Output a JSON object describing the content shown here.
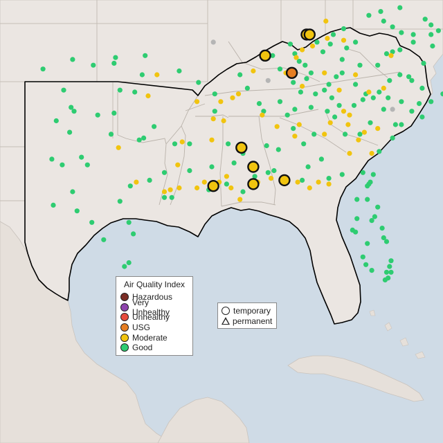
{
  "colors": {
    "ocean": "#cfdbe6",
    "land": "#ebe6e2",
    "region_outline": "#000000",
    "Hazardous": "#7b2d26",
    "Very Unhealthy": "#8e44ad",
    "Unhealthy": "#e74c3c",
    "USG": "#e67e22",
    "Moderate": "#f1c40f",
    "Good": "#2ecc71",
    "No data": "#b5b5b5"
  },
  "legend_aqi": {
    "title": "Air Quality Index",
    "items": [
      "Hazardous",
      "Very Unhealthy",
      "Unhealthy",
      "USG",
      "Moderate",
      "Good"
    ]
  },
  "legend_type": {
    "items": [
      "temporary",
      "permanent"
    ]
  },
  "monitors": {
    "highlighted": [
      {
        "lon": -85.8,
        "lat": 38.2,
        "aqi": "Moderate"
      },
      {
        "lon": -85.6,
        "lat": 38.2,
        "aqi": "Moderate"
      },
      {
        "lon": -88.6,
        "lat": 37.1,
        "aqi": "Moderate"
      },
      {
        "lon": -86.8,
        "lat": 36.2,
        "aqi": "USG"
      },
      {
        "lon": -90.2,
        "lat": 32.3,
        "aqi": "Moderate"
      },
      {
        "lon": -89.4,
        "lat": 31.3,
        "aqi": "Moderate"
      },
      {
        "lon": -89.4,
        "lat": 30.4,
        "aqi": "Moderate"
      },
      {
        "lon": -92.1,
        "lat": 30.3,
        "aqi": "Moderate"
      },
      {
        "lon": -87.3,
        "lat": 30.6,
        "aqi": "Moderate"
      }
    ],
    "moderate": [
      [
        -84.5,
        38.9
      ],
      [
        -84.4,
        38.0
      ],
      [
        -83.3,
        37.9
      ],
      [
        -86.1,
        37.4
      ],
      [
        -85.4,
        37.6
      ],
      [
        -86.5,
        37.0
      ],
      [
        -89.4,
        36.3
      ],
      [
        -87.2,
        36.2
      ],
      [
        -86.1,
        35.5
      ],
      [
        -84.6,
        36.2
      ],
      [
        -83.6,
        35.3
      ],
      [
        -82.5,
        36.1
      ],
      [
        -81.6,
        35.2
      ],
      [
        -80.6,
        35.4
      ],
      [
        -80.1,
        37.1
      ],
      [
        -81.0,
        33.3
      ],
      [
        -83.0,
        33.5
      ],
      [
        -83.3,
        34.2
      ],
      [
        -81.9,
        33.1
      ],
      [
        -82.9,
        32.0
      ],
      [
        -84.2,
        33.6
      ],
      [
        -84.6,
        33.0
      ],
      [
        -86.6,
        32.9
      ],
      [
        -86.3,
        33.5
      ],
      [
        -87.8,
        33.4
      ],
      [
        -88.8,
        34.0
      ],
      [
        -90.8,
        34.9
      ],
      [
        -90.4,
        35.1
      ],
      [
        -91.4,
        33.7
      ],
      [
        -92.1,
        33.8
      ],
      [
        -92.2,
        32.7
      ],
      [
        -93.2,
        34.7
      ],
      [
        -91.6,
        34.7
      ],
      [
        -94.2,
        32.6
      ],
      [
        -95.0,
        30.1
      ],
      [
        -94.4,
        30.2
      ],
      [
        -95.4,
        30.0
      ],
      [
        -93.2,
        30.2
      ],
      [
        -92.7,
        30.5
      ],
      [
        -91.7,
        30.5
      ],
      [
        -91.2,
        30.8
      ],
      [
        -90.9,
        30.2
      ],
      [
        -90.3,
        29.6
      ],
      [
        -89.1,
        30.5
      ],
      [
        -88.2,
        30.7
      ],
      [
        -86.4,
        30.5
      ],
      [
        -85.6,
        30.2
      ],
      [
        -85.0,
        30.5
      ],
      [
        -84.3,
        30.4
      ],
      [
        -82.9,
        34.0
      ],
      [
        -82.3,
        32.7
      ],
      [
        -81.4,
        32.0
      ],
      [
        -95.9,
        36.1
      ],
      [
        -96.5,
        35.0
      ],
      [
        -98.5,
        32.3
      ],
      [
        -94.5,
        31.4
      ],
      [
        -97.3,
        30.5
      ]
    ],
    "good": [
      [
        -103.6,
        36.4
      ],
      [
        -101.6,
        36.9
      ],
      [
        -100.2,
        36.6
      ],
      [
        -98.8,
        36.7
      ],
      [
        -98.7,
        37.0
      ],
      [
        -96.7,
        37.1
      ],
      [
        -102.2,
        35.3
      ],
      [
        -101.5,
        34.2
      ],
      [
        -101.7,
        34.4
      ],
      [
        -102.7,
        33.7
      ],
      [
        -101.8,
        33.1
      ],
      [
        -99.9,
        34.0
      ],
      [
        -98.8,
        34.1
      ],
      [
        -98.4,
        35.3
      ],
      [
        -97.4,
        35.2
      ],
      [
        -96.9,
        36.1
      ],
      [
        -99.0,
        33.0
      ],
      [
        -100.6,
        31.4
      ],
      [
        -101.0,
        31.8
      ],
      [
        -103.0,
        31.7
      ],
      [
        -102.3,
        31.4
      ],
      [
        -101.6,
        30.0
      ],
      [
        -102.9,
        29.3
      ],
      [
        -101.3,
        29.0
      ],
      [
        -100.3,
        28.4
      ],
      [
        -99.5,
        27.5
      ],
      [
        -98.1,
        26.1
      ],
      [
        -97.8,
        26.3
      ],
      [
        -97.5,
        27.8
      ],
      [
        -97.8,
        28.4
      ],
      [
        -98.4,
        29.5
      ],
      [
        -97.7,
        30.3
      ],
      [
        -96.4,
        30.6
      ],
      [
        -96.8,
        32.8
      ],
      [
        -97.1,
        32.7
      ],
      [
        -95.4,
        31.0
      ],
      [
        -94.9,
        29.7
      ],
      [
        -95.4,
        29.7
      ],
      [
        -96.1,
        33.4
      ],
      [
        -94.7,
        32.5
      ],
      [
        -93.7,
        32.5
      ],
      [
        -92.2,
        31.3
      ],
      [
        -92.0,
        34.2
      ],
      [
        -93.1,
        35.7
      ],
      [
        -94.4,
        36.3
      ],
      [
        -92.0,
        35.1
      ],
      [
        -90.3,
        36.1
      ],
      [
        -89.8,
        35.4
      ],
      [
        -89.0,
        34.6
      ],
      [
        -90.1,
        32.0
      ],
      [
        -90.7,
        31.5
      ],
      [
        -88.0,
        31.1
      ],
      [
        -88.5,
        32.4
      ],
      [
        -87.6,
        34.7
      ],
      [
        -87.1,
        34.0
      ],
      [
        -86.6,
        34.3
      ],
      [
        -86.7,
        33.3
      ],
      [
        -86.0,
        32.5
      ],
      [
        -84.8,
        31.7
      ],
      [
        -85.3,
        33.0
      ],
      [
        -84.4,
        34.2
      ],
      [
        -84.1,
        34.9
      ],
      [
        -83.6,
        34.5
      ],
      [
        -83.2,
        33.0
      ],
      [
        -82.0,
        31.0
      ],
      [
        -81.3,
        30.9
      ],
      [
        -80.9,
        32.1
      ],
      [
        -80.0,
        32.8
      ],
      [
        -79.4,
        33.5
      ],
      [
        -78.7,
        34.2
      ],
      [
        -78.2,
        34.6
      ],
      [
        -78.0,
        33.9
      ],
      [
        -77.4,
        34.7
      ],
      [
        -76.6,
        35.1
      ],
      [
        -76.3,
        35.8
      ],
      [
        -76.5,
        36.4
      ],
      [
        -77.3,
        37.6
      ],
      [
        -76.3,
        37.6
      ],
      [
        -76.9,
        38.4
      ],
      [
        -76.5,
        38.8
      ],
      [
        -76.5,
        39.5
      ],
      [
        -77.8,
        39.0
      ],
      [
        -77.4,
        38.7
      ],
      [
        -77.4,
        38.2
      ],
      [
        -78.6,
        38.2
      ],
      [
        -78.6,
        37.8
      ],
      [
        -79.4,
        38.3
      ],
      [
        -80.0,
        38.6
      ],
      [
        -81.6,
        39.2
      ],
      [
        -80.8,
        39.4
      ],
      [
        -79.5,
        39.6
      ],
      [
        -80.0,
        37.3
      ],
      [
        -81.0,
        36.6
      ],
      [
        -82.2,
        36.6
      ],
      [
        -82.5,
        35.6
      ],
      [
        -81.8,
        35.1
      ],
      [
        -80.9,
        35.2
      ],
      [
        -80.2,
        35.8
      ],
      [
        -79.5,
        36.1
      ],
      [
        -78.7,
        35.8
      ],
      [
        -78.0,
        35.4
      ],
      [
        -79.4,
        34.7
      ],
      [
        -80.6,
        34.3
      ],
      [
        -81.3,
        34.9
      ],
      [
        -82.0,
        34.8
      ],
      [
        -80.3,
        34.9
      ],
      [
        -82.6,
        34.5
      ],
      [
        -79.8,
        33.5
      ],
      [
        -81.5,
        33.6
      ],
      [
        -83.4,
        36.2
      ],
      [
        -84.3,
        35.6
      ],
      [
        -84.6,
        35.3
      ],
      [
        -85.2,
        35.1
      ],
      [
        -85.8,
        35.9
      ],
      [
        -86.7,
        35.7
      ],
      [
        -85.9,
        36.6
      ],
      [
        -84.7,
        37.3
      ],
      [
        -86.9,
        37.7
      ],
      [
        -85.1,
        37.8
      ],
      [
        -84.0,
        38.2
      ],
      [
        -83.3,
        38.5
      ],
      [
        -82.5,
        37.8
      ],
      [
        -83.4,
        36.9
      ],
      [
        -86.3,
        36.8
      ],
      [
        -86.6,
        37.2
      ],
      [
        -88.1,
        37.1
      ],
      [
        -87.6,
        36.4
      ],
      [
        -85.5,
        36.2
      ],
      [
        -83.8,
        36.0
      ],
      [
        -86.2,
        35.2
      ],
      [
        -81.6,
        30.4
      ],
      [
        -81.7,
        30.3
      ],
      [
        -81.5,
        30.5
      ],
      [
        -81.7,
        29.6
      ],
      [
        -82.4,
        29.6
      ],
      [
        -81.0,
        29.2
      ],
      [
        -81.4,
        28.5
      ],
      [
        -81.2,
        28.7
      ],
      [
        -82.7,
        28.0
      ],
      [
        -82.5,
        27.9
      ],
      [
        -82.4,
        28.6
      ],
      [
        -81.7,
        27.3
      ],
      [
        -80.7,
        28.1
      ],
      [
        -80.6,
        27.6
      ],
      [
        -80.4,
        27.4
      ],
      [
        -82.0,
        26.6
      ],
      [
        -81.8,
        26.2
      ],
      [
        -80.1,
        26.4
      ],
      [
        -80.2,
        26.1
      ],
      [
        -80.4,
        25.8
      ],
      [
        -80.3,
        25.5
      ],
      [
        -80.1,
        25.8
      ],
      [
        -80.5,
        25.4
      ],
      [
        -81.4,
        25.9
      ],
      [
        -83.4,
        30.9
      ],
      [
        -84.3,
        30.7
      ],
      [
        -85.7,
        31.3
      ],
      [
        -86.1,
        30.6
      ],
      [
        -87.4,
        30.7
      ],
      [
        -88.4,
        31.0
      ],
      [
        -89.3,
        30.8
      ],
      [
        -90.1,
        30.0
      ],
      [
        -91.2,
        30.4
      ],
      [
        -92.4,
        30.1
      ],
      [
        -93.7,
        31.1
      ],
      [
        -91.1,
        32.5
      ],
      [
        -88.7,
        34.2
      ],
      [
        -87.7,
        32.2
      ],
      [
        -85.5,
        34.4
      ],
      [
        -83.9,
        33.9
      ],
      [
        -82.2,
        33.0
      ],
      [
        -77.9,
        36.7
      ],
      [
        -78.9,
        36.0
      ],
      [
        -83.1,
        37.5
      ],
      [
        -80.6,
        38.9
      ],
      [
        -76.2,
        39.2
      ],
      [
        -79.5,
        37.4
      ],
      [
        -80.4,
        37.2
      ],
      [
        -84.2,
        37.7
      ]
    ],
    "nodata": [
      [
        -92.1,
        37.8
      ],
      [
        -88.4,
        35.8
      ],
      [
        -80.0,
        34.3
      ]
    ]
  }
}
